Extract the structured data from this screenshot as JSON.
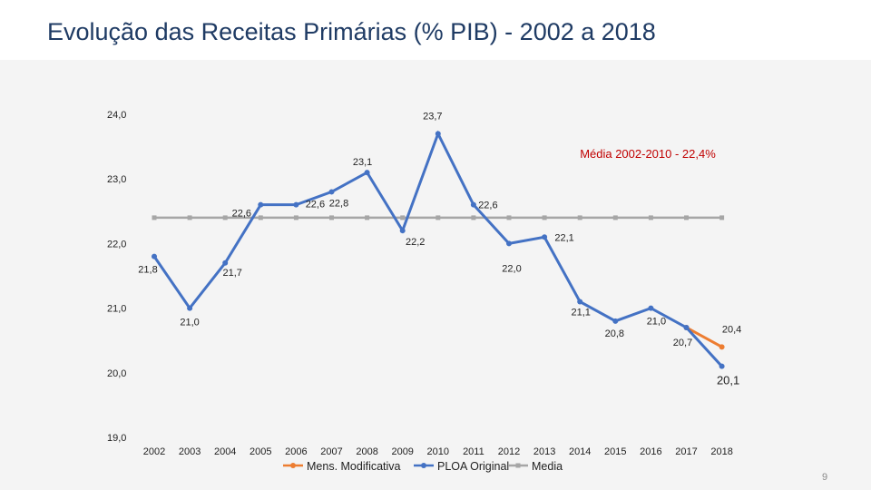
{
  "slide": {
    "title": "Evolução das Receitas Primárias (% PIB) - 2002 a 2018",
    "page_number": "9"
  },
  "chart_data": {
    "type": "line",
    "title": "Evolução das Receitas Primárias (% PIB) - 2002 a 2018",
    "categories": [
      "2002",
      "2003",
      "2004",
      "2005",
      "2006",
      "2007",
      "2008",
      "2009",
      "2010",
      "2011",
      "2012",
      "2013",
      "2014",
      "2015",
      "2016",
      "2017",
      "2018"
    ],
    "y_ticks": [
      "19,0",
      "20,0",
      "21,0",
      "22,0",
      "23,0",
      "24,0"
    ],
    "ylim": [
      19,
      24
    ],
    "annotation": "Média 2002-2010 - 22,4%",
    "series": [
      {
        "name": "PLOA Original",
        "color": "#4472c4",
        "values": [
          21.8,
          21.0,
          21.7,
          22.6,
          22.6,
          22.8,
          23.1,
          22.2,
          23.7,
          22.6,
          22.0,
          22.1,
          21.1,
          20.8,
          21.0,
          20.7,
          20.1
        ],
        "labels": [
          "21,8",
          "21,0",
          "21,7",
          "22,6",
          "22,6",
          "22,8",
          "23,1",
          "22,2",
          "23,7",
          "22,6",
          "22,0",
          "22,1",
          "21,1",
          "20,8",
          "21,0",
          "20,7",
          "20,1"
        ]
      },
      {
        "name": "Mens. Modificativa",
        "color": "#ed7d31",
        "values": [
          null,
          null,
          null,
          null,
          null,
          null,
          null,
          null,
          null,
          null,
          null,
          null,
          null,
          null,
          null,
          20.7,
          20.4
        ],
        "labels": [
          null,
          null,
          null,
          null,
          null,
          null,
          null,
          null,
          null,
          null,
          null,
          null,
          null,
          null,
          null,
          null,
          "20,4"
        ]
      },
      {
        "name": "Media",
        "color": "#a6a6a6",
        "values": [
          22.4,
          22.4,
          22.4,
          22.4,
          22.4,
          22.4,
          22.4,
          22.4,
          22.4,
          22.4,
          22.4,
          22.4,
          22.4,
          22.4,
          22.4,
          22.4,
          22.4
        ]
      }
    ],
    "legend_order": [
      "Mens. Modificativa",
      "PLOA Original",
      "Media"
    ]
  }
}
